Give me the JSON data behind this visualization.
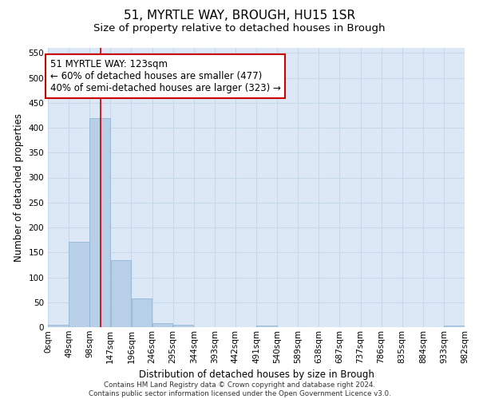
{
  "title": "51, MYRTLE WAY, BROUGH, HU15 1SR",
  "subtitle": "Size of property relative to detached houses in Brough",
  "xlabel": "Distribution of detached houses by size in Brough",
  "ylabel": "Number of detached properties",
  "bin_edges": [
    0,
    49,
    98,
    147,
    196,
    245,
    294,
    343,
    392,
    441,
    490,
    539,
    588,
    637,
    686,
    735,
    784,
    833,
    882,
    931,
    980
  ],
  "bin_labels": [
    "0sqm",
    "49sqm",
    "98sqm",
    "147sqm",
    "196sqm",
    "246sqm",
    "295sqm",
    "344sqm",
    "393sqm",
    "442sqm",
    "491sqm",
    "540sqm",
    "589sqm",
    "638sqm",
    "687sqm",
    "737sqm",
    "786sqm",
    "835sqm",
    "884sqm",
    "933sqm",
    "982sqm"
  ],
  "counts": [
    5,
    172,
    420,
    135,
    57,
    8,
    5,
    0,
    0,
    0,
    3,
    0,
    0,
    0,
    0,
    0,
    0,
    0,
    0,
    3
  ],
  "bar_color": "#b8cfe8",
  "bar_edge_color": "#8ab0d0",
  "grid_color": "#c8d8eb",
  "bg_color": "#dce8f5",
  "vline_x": 123,
  "vline_color": "#cc0000",
  "annotation_line1": "51 MYRTLE WAY: 123sqm",
  "annotation_line2": "← 60% of detached houses are smaller (477)",
  "annotation_line3": "40% of semi-detached houses are larger (323) →",
  "annotation_box_color": "#ffffff",
  "annotation_box_edge": "#cc0000",
  "ylim": [
    0,
    560
  ],
  "yticks": [
    0,
    50,
    100,
    150,
    200,
    250,
    300,
    350,
    400,
    450,
    500,
    550
  ],
  "footnote": "Contains HM Land Registry data © Crown copyright and database right 2024.\nContains public sector information licensed under the Open Government Licence v3.0.",
  "title_fontsize": 11,
  "subtitle_fontsize": 9.5,
  "label_fontsize": 8.5,
  "tick_fontsize": 7.5,
  "annot_fontsize": 8.5
}
